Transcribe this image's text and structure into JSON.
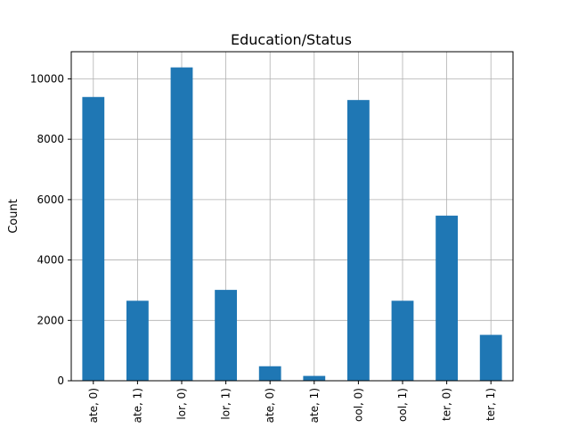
{
  "chart_data": {
    "type": "bar",
    "title": "Education/Status",
    "xlabel": "",
    "ylabel": "Count",
    "categories": [
      "ate, 0)",
      "ate, 1)",
      "lor, 0)",
      "lor, 1)",
      "ate, 0)",
      "ate, 1)",
      "ool, 0)",
      "ool, 1)",
      "ter, 0)",
      "ter, 1)"
    ],
    "values": [
      9400,
      2650,
      10380,
      3010,
      480,
      160,
      9300,
      2650,
      5470,
      1520
    ],
    "ylim": [
      0,
      10900
    ],
    "yticks": [
      0,
      2000,
      4000,
      6000,
      8000,
      10000
    ],
    "grid": true,
    "bar_color": "#1f77b4"
  }
}
